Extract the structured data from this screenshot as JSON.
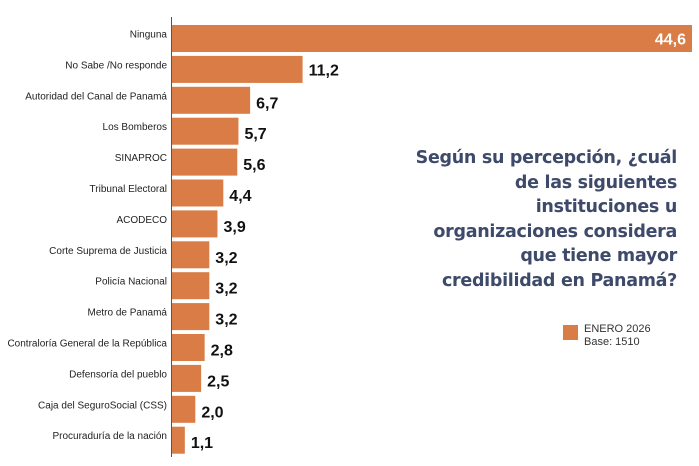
{
  "chart_data": {
    "type": "bar",
    "orientation": "horizontal",
    "title": "Según su percepción, ¿cuál de las siguientes instituciones u organizaciones considera que tiene mayor credibilidad en Panamá?",
    "categories": [
      "Ninguna",
      "No Sabe /No responde",
      "Autoridad del Canal de Panamá",
      "Los Bomberos",
      "SINAPROC",
      "Tribunal Electoral",
      "ACODECO",
      "Corte Suprema de Justicia",
      "Policía Nacional",
      "Metro de Panamá",
      "Contraloría General de la República",
      "Defensoría del pueblo",
      "Caja del SeguroSocial (CSS)",
      "Procuraduría de la nación"
    ],
    "values": [
      44.6,
      11.2,
      6.7,
      5.7,
      5.6,
      4.4,
      3.9,
      3.2,
      3.2,
      3.2,
      2.8,
      2.5,
      2.0,
      1.1
    ],
    "value_labels": [
      "44,6",
      "11,2",
      "6,7",
      "5,7",
      "5,6",
      "4,4",
      "3,9",
      "3,2",
      "3,2",
      "3,2",
      "2,8",
      "2,5",
      "2,0",
      "1,1"
    ],
    "xlim": [
      0,
      44.6
    ],
    "grid": false,
    "bar_color": "#d97c45",
    "legend": {
      "label": "ENERO 2026",
      "note": "Base: 1510",
      "placement": "right"
    }
  }
}
